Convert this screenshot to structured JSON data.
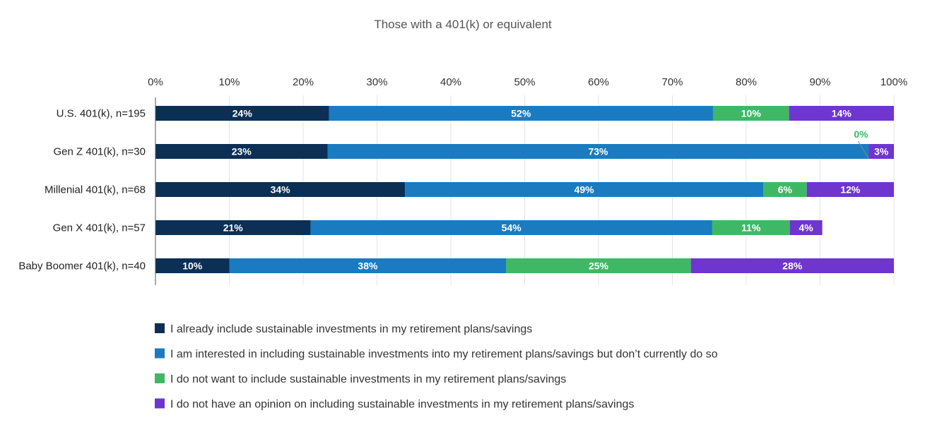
{
  "chart_data": {
    "type": "bar",
    "orientation": "horizontal",
    "stacked": true,
    "title": "Those with a 401(k) or equivalent",
    "xlim": [
      0,
      100
    ],
    "x_ticks": [
      "0%",
      "10%",
      "20%",
      "30%",
      "40%",
      "50%",
      "60%",
      "70%",
      "80%",
      "90%",
      "100%"
    ],
    "grid": true,
    "legend_position": "bottom",
    "categories": [
      "U.S. 401(k), n=195",
      "Gen Z 401(k), n=30",
      "Millenial 401(k), n=68",
      "Gen X 401(k), n=57",
      "Baby Boomer 401(k), n=40"
    ],
    "series": [
      {
        "name": "I already include sustainable investments in my retirement plans/savings",
        "color": "#0b2f55",
        "values": [
          23.5,
          23.3,
          33.8,
          21.0,
          10.0
        ],
        "labels": [
          "24%",
          "23%",
          "34%",
          "21%",
          "10%"
        ]
      },
      {
        "name": "I am interested in including sustainable investments into my retirement plans/savings but don’t currently do so",
        "color": "#1a7bc0",
        "values": [
          52.0,
          73.3,
          48.5,
          54.4,
          37.5
        ],
        "labels": [
          "52%",
          "73%",
          "49%",
          "54%",
          "38%"
        ]
      },
      {
        "name": "I do not want to include sustainable investments in my retirement plans/savings",
        "color": "#3fb866",
        "values": [
          10.3,
          0.0,
          5.9,
          10.5,
          25.0
        ],
        "labels": [
          "10%",
          "0%",
          "6%",
          "11%",
          "25%"
        ]
      },
      {
        "name": "I do not have an opinion on including sustainable investments in my retirement plans/savings",
        "color": "#6f35cf",
        "values": [
          14.2,
          3.4,
          11.8,
          4.4,
          27.5
        ],
        "labels": [
          "14%",
          "3%",
          "12%",
          "4%",
          "28%"
        ]
      }
    ],
    "outside_label_color": "#3fb866"
  }
}
